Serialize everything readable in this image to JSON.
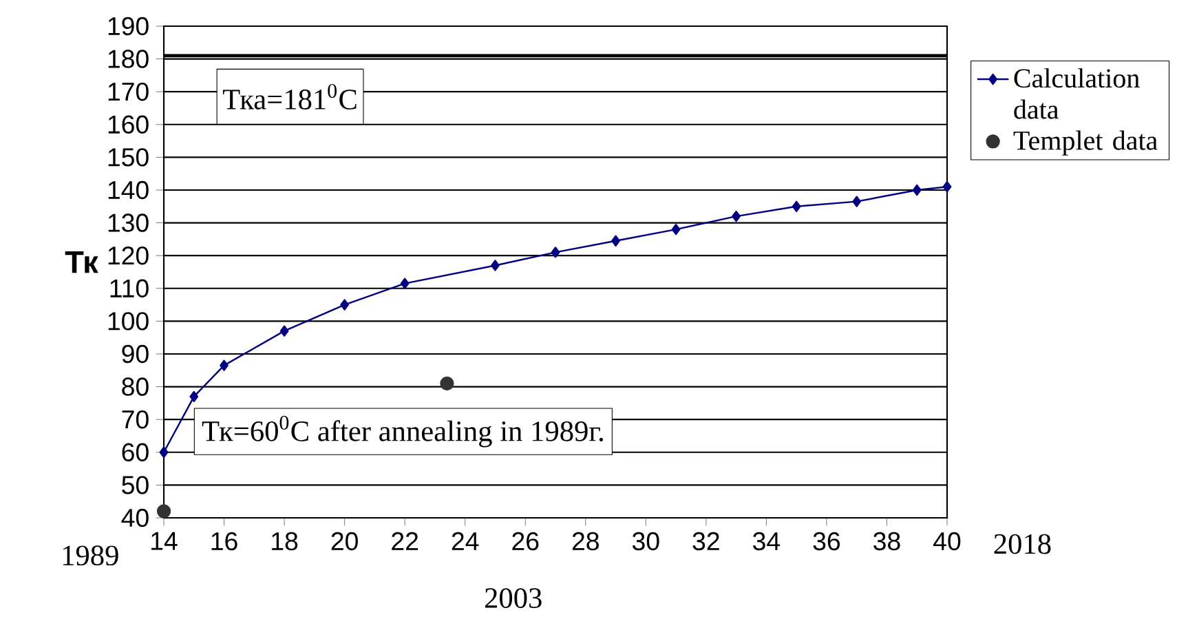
{
  "chart_data": {
    "type": "line",
    "ylabel": "Тк",
    "xlim": [
      14,
      40
    ],
    "ylim": [
      40,
      190
    ],
    "xticks": [
      14,
      16,
      18,
      20,
      22,
      24,
      26,
      28,
      30,
      32,
      34,
      36,
      38,
      40
    ],
    "yticks": [
      40,
      50,
      60,
      70,
      80,
      90,
      100,
      110,
      120,
      130,
      140,
      150,
      160,
      170,
      180,
      190
    ],
    "grid": "y",
    "legend": "right",
    "series": [
      {
        "name": "Calculation data",
        "marker": "diamond",
        "line_style": "solid",
        "color": "#000080",
        "x": [
          14,
          15,
          16,
          18,
          20,
          22,
          25,
          27,
          29,
          31,
          33,
          35,
          37,
          39,
          40
        ],
        "values": [
          60,
          77,
          86.5,
          97,
          105,
          111.5,
          117,
          121,
          124.5,
          128,
          132,
          135,
          136.5,
          140,
          141
        ]
      },
      {
        "name": "Templet data",
        "type": "scatter",
        "marker": "circle",
        "color": "#333333",
        "x": [
          14,
          23.4
        ],
        "values": [
          42,
          81
        ]
      }
    ],
    "ref_lines": [
      {
        "axis": "y",
        "value": 181,
        "label": "Тка=181$^{0}$С",
        "color": "#000000"
      }
    ],
    "annotations": [
      "Тк=60$^{0}$С after annealing in 1989г.",
      "1989",
      "2003",
      "2018"
    ]
  }
}
